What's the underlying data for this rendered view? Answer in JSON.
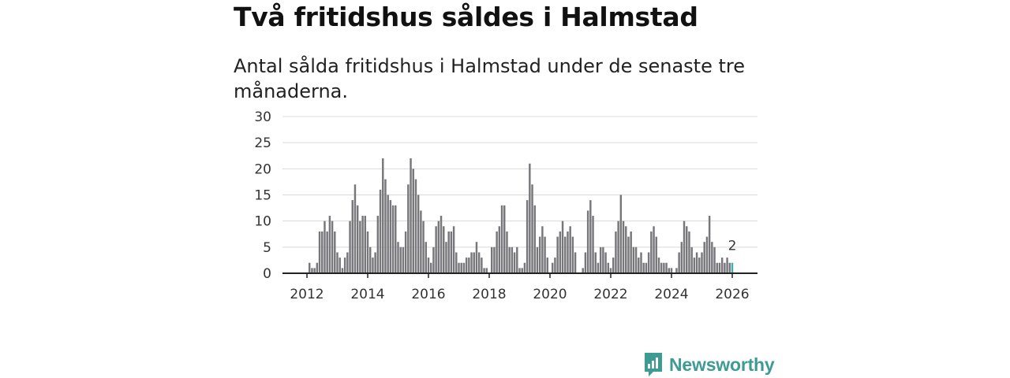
{
  "title": "Två fritidshus såldes i Halmstad",
  "subtitle": "Antal sålda fritidshus i Halmstad under de senaste tre månaderna.",
  "brand": {
    "name": "Newsworthy",
    "color": "#3d9b93"
  },
  "chart_data": {
    "type": "bar",
    "title": "Två fritidshus såldes i Halmstad",
    "subtitle": "Antal sålda fritidshus i Halmstad under de senaste tre månaderna.",
    "xlabel": "",
    "ylabel": "",
    "ylim": [
      0,
      30
    ],
    "yticks": [
      "0",
      "5",
      "10",
      "15",
      "20",
      "25",
      "30"
    ],
    "xticks": [
      "2012",
      "2014",
      "2016",
      "2018",
      "2020",
      "2022",
      "2024",
      "2026"
    ],
    "grid": true,
    "legend": "none",
    "start": "2011-11",
    "bar_color": "#77777b",
    "highlight_color": "#3aafa9",
    "highlight_label": "2",
    "values": [
      0,
      0,
      0,
      2,
      1,
      1,
      2,
      8,
      8,
      10,
      8,
      11,
      10,
      8,
      4,
      3,
      1,
      3,
      4,
      10,
      14,
      17,
      13,
      10,
      11,
      11,
      8,
      5,
      3,
      4,
      11,
      16,
      22,
      18,
      15,
      14,
      13,
      13,
      6,
      5,
      5,
      8,
      17,
      22,
      20,
      18,
      15,
      12,
      10,
      6,
      3,
      2,
      5,
      9,
      10,
      11,
      9,
      6,
      8,
      8,
      9,
      4,
      2,
      2,
      2,
      3,
      3,
      4,
      4,
      6,
      4,
      3,
      1,
      1,
      0,
      5,
      5,
      8,
      9,
      13,
      13,
      8,
      5,
      5,
      4,
      5,
      1,
      1,
      2,
      14,
      21,
      17,
      13,
      5,
      7,
      9,
      7,
      3,
      0,
      2,
      3,
      7,
      8,
      10,
      7,
      8,
      9,
      7,
      4,
      0,
      0,
      1,
      4,
      12,
      14,
      11,
      4,
      2,
      5,
      5,
      4,
      2,
      1,
      3,
      8,
      10,
      15,
      10,
      9,
      7,
      8,
      5,
      5,
      3,
      4,
      2,
      2,
      4,
      8,
      9,
      7,
      3,
      2,
      2,
      2,
      1,
      1,
      0,
      1,
      4,
      6,
      10,
      9,
      8,
      5,
      3,
      4,
      3,
      4,
      6,
      7,
      11,
      6,
      5,
      2,
      2,
      3,
      2,
      3,
      2,
      2
    ]
  }
}
